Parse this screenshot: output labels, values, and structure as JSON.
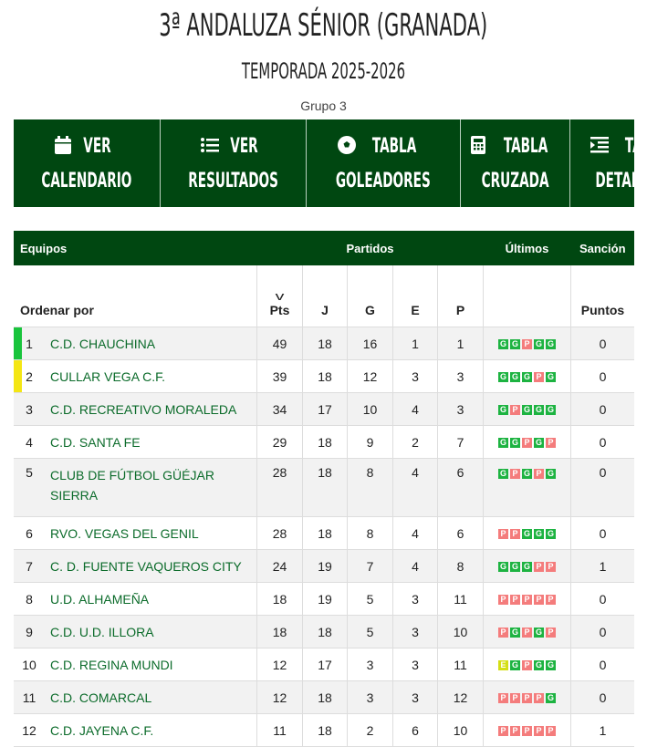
{
  "header": {
    "title": "3ª ANDALUZA SÉNIOR (GRANADA)",
    "season": "TEMPORADA 2025-2026",
    "group": "Grupo 3"
  },
  "nav": [
    {
      "icon": "calendar-icon",
      "l1": "VER",
      "l2": "CALENDARIO"
    },
    {
      "icon": "list-icon",
      "l1": "VER",
      "l2": "RESULTADOS"
    },
    {
      "icon": "soccer-ball-icon",
      "l1": "TABLA",
      "l2": "GOLEADORES"
    },
    {
      "icon": "calculator-icon",
      "l1": "TABLA",
      "l2": "CRUZADA"
    },
    {
      "icon": "indent-list-icon",
      "l1": "TABLA",
      "l2": "DETALLADA"
    }
  ],
  "table": {
    "group_headers": {
      "teams": "Equipos",
      "matches": "Partidos",
      "last": "Últimos",
      "sanction": "Sanción"
    },
    "sort_label": "Ordenar por",
    "cols": [
      "Pts",
      "J",
      "G",
      "E",
      "P"
    ],
    "sanction_sub": "Puntos",
    "colors": {
      "G": "#1db341",
      "P": "#f47c7c",
      "E": "#d4df14",
      "first": "#19c43c",
      "second": "#f4e614"
    },
    "rows": [
      {
        "pos": "1",
        "team": "C.D. CHAUCHINA",
        "pts": "49",
        "j": "18",
        "g": "16",
        "e": "1",
        "p": "1",
        "last": [
          "G",
          "G",
          "P",
          "G",
          "G"
        ],
        "sanc": "0",
        "mark": "first"
      },
      {
        "pos": "2",
        "team": "CULLAR VEGA C.F.",
        "pts": "39",
        "j": "18",
        "g": "12",
        "e": "3",
        "p": "3",
        "last": [
          "G",
          "G",
          "G",
          "P",
          "G"
        ],
        "sanc": "0",
        "mark": "second"
      },
      {
        "pos": "3",
        "team": "C.D. RECREATIVO MORALEDA",
        "pts": "34",
        "j": "17",
        "g": "10",
        "e": "4",
        "p": "3",
        "last": [
          "G",
          "P",
          "G",
          "G",
          "G"
        ],
        "sanc": "0"
      },
      {
        "pos": "4",
        "team": "C.D. SANTA FE",
        "pts": "29",
        "j": "18",
        "g": "9",
        "e": "2",
        "p": "7",
        "last": [
          "G",
          "G",
          "P",
          "G",
          "P"
        ],
        "sanc": "0"
      },
      {
        "pos": "5",
        "team": "CLUB DE FÚTBOL GÜÉJAR SIERRA",
        "pts": "28",
        "j": "18",
        "g": "8",
        "e": "4",
        "p": "6",
        "last": [
          "G",
          "P",
          "G",
          "P",
          "G"
        ],
        "sanc": "0",
        "tall": true
      },
      {
        "pos": "6",
        "team": "RVO. VEGAS DEL GENIL",
        "pts": "28",
        "j": "18",
        "g": "8",
        "e": "4",
        "p": "6",
        "last": [
          "P",
          "P",
          "G",
          "G",
          "G"
        ],
        "sanc": "0"
      },
      {
        "pos": "7",
        "team": "C. D. FUENTE VAQUEROS CITY",
        "pts": "24",
        "j": "19",
        "g": "7",
        "e": "4",
        "p": "8",
        "last": [
          "G",
          "G",
          "G",
          "P",
          "P"
        ],
        "sanc": "1"
      },
      {
        "pos": "8",
        "team": "U.D. ALHAMEÑA",
        "pts": "18",
        "j": "19",
        "g": "5",
        "e": "3",
        "p": "11",
        "last": [
          "P",
          "P",
          "P",
          "P",
          "P"
        ],
        "sanc": "0"
      },
      {
        "pos": "9",
        "team": "C.D. U.D. ILLORA",
        "pts": "18",
        "j": "18",
        "g": "5",
        "e": "3",
        "p": "10",
        "last": [
          "P",
          "G",
          "P",
          "G",
          "P"
        ],
        "sanc": "0"
      },
      {
        "pos": "10",
        "team": "C.D. REGINA MUNDI",
        "pts": "12",
        "j": "17",
        "g": "3",
        "e": "3",
        "p": "11",
        "last": [
          "E",
          "G",
          "P",
          "G",
          "G"
        ],
        "sanc": "0"
      },
      {
        "pos": "11",
        "team": "C.D. COMARCAL",
        "pts": "12",
        "j": "18",
        "g": "3",
        "e": "3",
        "p": "12",
        "last": [
          "P",
          "P",
          "P",
          "P",
          "G"
        ],
        "sanc": "0"
      },
      {
        "pos": "12",
        "team": "C.D. JAYENA C.F.",
        "pts": "11",
        "j": "18",
        "g": "2",
        "e": "6",
        "p": "10",
        "last": [
          "P",
          "P",
          "P",
          "P",
          "P"
        ],
        "sanc": "1"
      }
    ]
  }
}
